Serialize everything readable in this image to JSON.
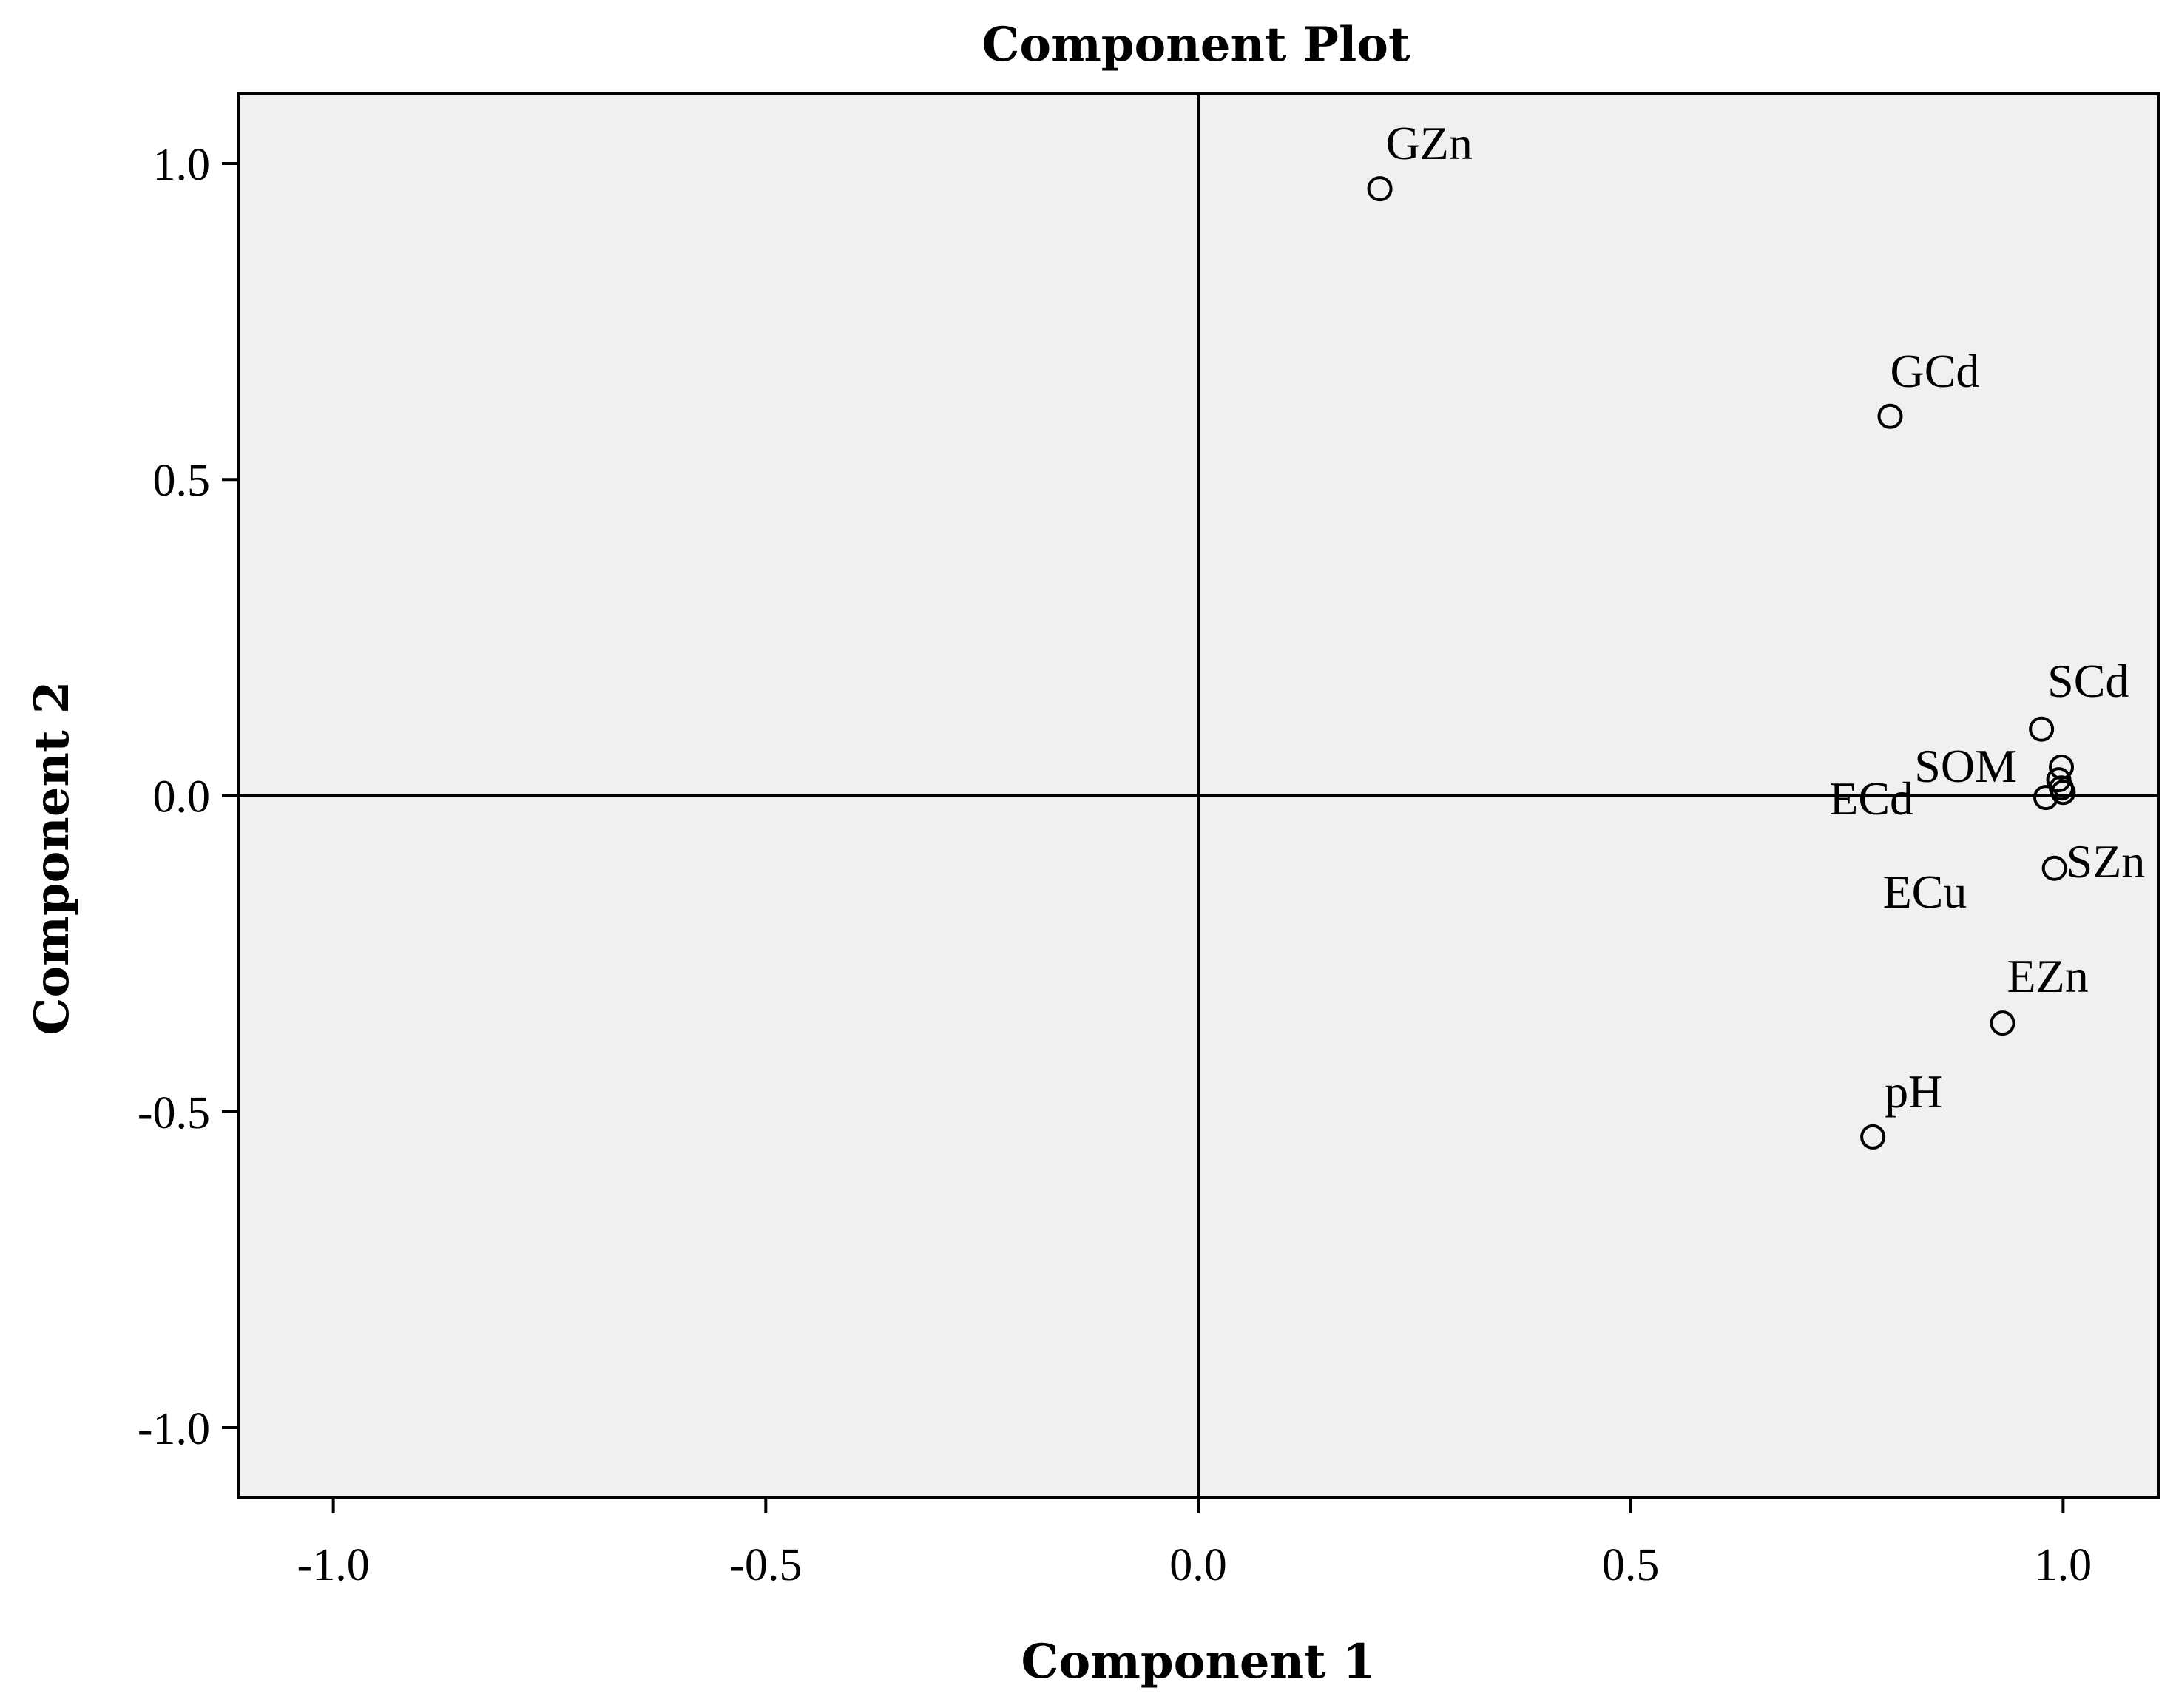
{
  "chart_data": {
    "type": "scatter",
    "title": "Component Plot",
    "xlabel": "Component 1",
    "ylabel": "Component 2",
    "xlim": [
      -1.11,
      1.11
    ],
    "ylim": [
      -1.11,
      1.11
    ],
    "xticks": [
      -1.0,
      -0.5,
      0.0,
      0.5,
      1.0
    ],
    "yticks": [
      -1.0,
      -0.5,
      0.0,
      0.5,
      1.0
    ],
    "xtick_labels": [
      "-1.0",
      "-0.5",
      "0.0",
      "0.5",
      "1.0"
    ],
    "ytick_labels": [
      "-1.0",
      "-0.5",
      "0.0",
      "0.5",
      "1.0"
    ],
    "reference_lines": {
      "x": 0.0,
      "y": 0.0
    },
    "background": "#f0f0f0",
    "points": [
      {
        "label": "GZn",
        "x": 0.21,
        "y": 0.96
      },
      {
        "label": "GCd",
        "x": 0.8,
        "y": 0.6
      },
      {
        "label": "SCd",
        "x": 0.975,
        "y": 0.105
      },
      {
        "label": "SOM",
        "x": 0.998,
        "y": 0.045
      },
      {
        "label": "ECd",
        "x": 0.998,
        "y": 0.012
      },
      {
        "label": "",
        "x": 0.995,
        "y": 0.025
      },
      {
        "label": "",
        "x": 0.98,
        "y": -0.003
      },
      {
        "label": "SZn",
        "x": 0.99,
        "y": -0.115
      },
      {
        "label": "ECu",
        "x": 1.0,
        "y": 0.005
      },
      {
        "label": "EZn",
        "x": 0.93,
        "y": -0.36
      },
      {
        "label": "pH",
        "x": 0.78,
        "y": -0.54
      }
    ]
  }
}
